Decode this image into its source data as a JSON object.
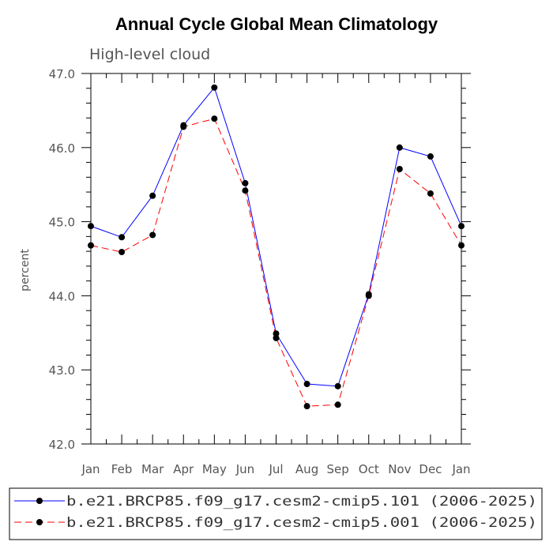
{
  "chart_data": {
    "type": "line",
    "title": "Annual Cycle Global Mean Climatology",
    "subtitle": "High-level cloud",
    "xlabel": "",
    "ylabel": "percent",
    "categories": [
      "Jan",
      "Feb",
      "Mar",
      "Apr",
      "May",
      "Jun",
      "Jul",
      "Aug",
      "Sep",
      "Oct",
      "Nov",
      "Dec",
      "Jan"
    ],
    "ylim": [
      42.0,
      47.0
    ],
    "yticks": [
      "42.0",
      "43.0",
      "44.0",
      "45.0",
      "46.0",
      "47.0"
    ],
    "series": [
      {
        "name": "b.e21.BRCP85.f09_g17.cesm2-cmip5.101 (2006-2025)",
        "color": "#0000ff",
        "dash": "solid",
        "values": [
          44.94,
          44.79,
          45.35,
          46.3,
          46.81,
          45.52,
          43.49,
          42.81,
          42.78,
          44.02,
          46.0,
          45.88,
          44.94
        ]
      },
      {
        "name": "b.e21.BRCP85.f09_g17.cesm2-cmip5.001 (2006-2025)",
        "color": "#ff0000",
        "dash": "dashed",
        "values": [
          44.68,
          44.59,
          44.82,
          46.28,
          46.39,
          45.42,
          43.43,
          42.51,
          42.53,
          44.0,
          45.71,
          45.38,
          44.68
        ]
      }
    ],
    "legend_position": "bottom"
  }
}
